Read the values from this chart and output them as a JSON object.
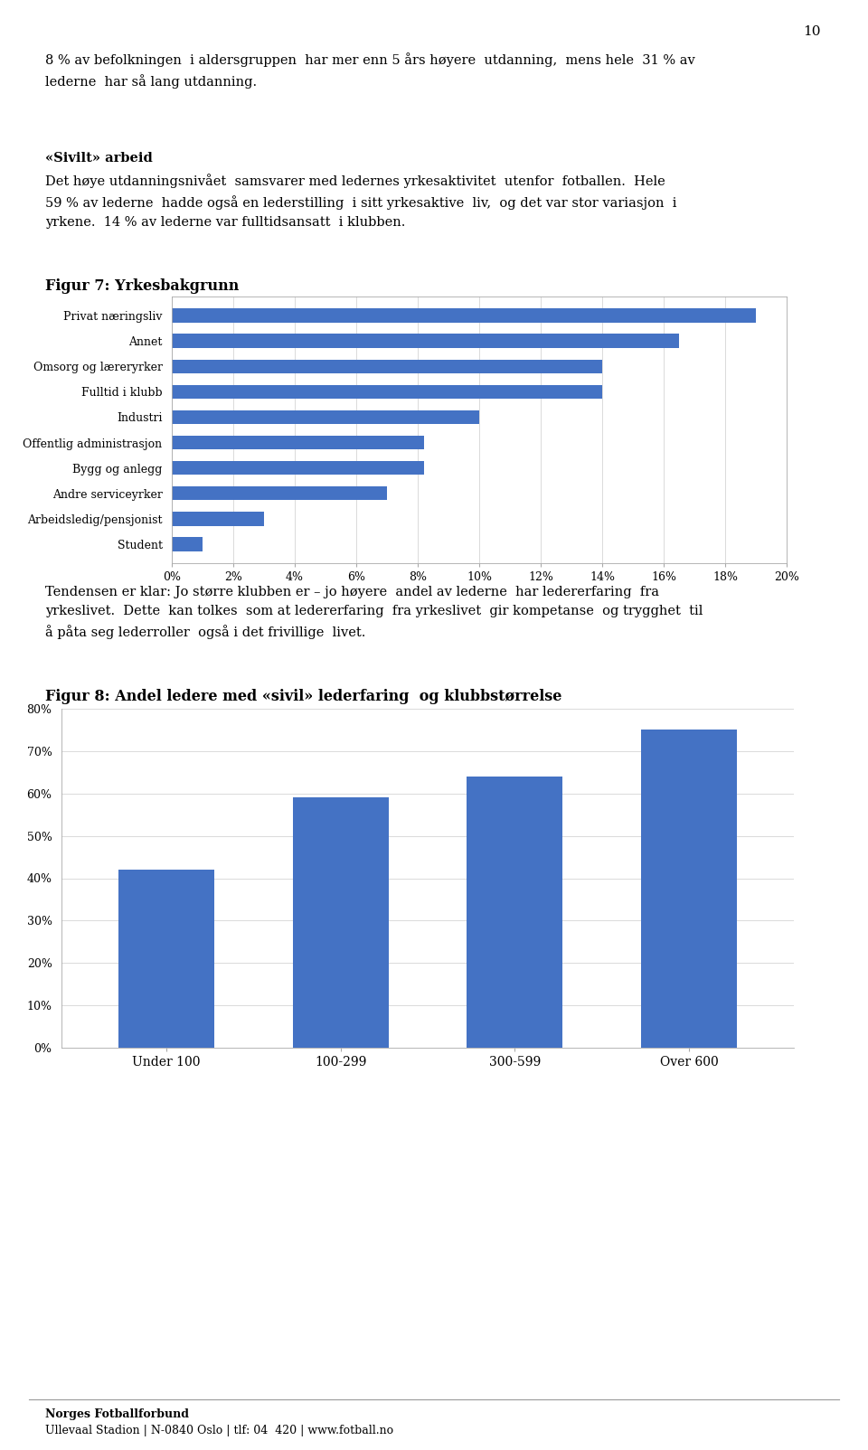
{
  "page_number": "10",
  "text_block1": "8 % av befolkningen  i aldersgruppen  har mer enn 5 års høyere  utdanning,  mens hele  31 % av\nlederne  har så lang utdanning.",
  "section_title": "«Sivilt» arbeid",
  "text_block2": "Det høye utdanningsnivået  samsvarer med ledernes yrkesaktivitet  utenfor  fotballen.  Hele\n59 % av lederne  hadde også en lederstilling  i sitt yrkesaktive  liv,  og det var stor variasjon  i\nyrkene.  14 % av lederne var fulltidsansatt  i klubben.",
  "fig7_title": "Figur 7: Yrkesbakgrunn",
  "fig7_categories": [
    "Privat næringsliv",
    "Annet",
    "Omsorg og læreryrker",
    "Fulltid i klubb",
    "Industri",
    "Offentlig administrasjon",
    "Bygg og anlegg",
    "Andre serviceyrker",
    "Arbeidsledig/pensjonist",
    "Student"
  ],
  "fig7_values": [
    0.19,
    0.165,
    0.14,
    0.14,
    0.1,
    0.082,
    0.082,
    0.07,
    0.03,
    0.01
  ],
  "fig7_bar_color": "#4472C4",
  "fig7_xlim": [
    0,
    0.2
  ],
  "fig7_xticks": [
    0,
    0.02,
    0.04,
    0.06,
    0.08,
    0.1,
    0.12,
    0.14,
    0.16,
    0.18,
    0.2
  ],
  "fig7_xtick_labels": [
    "0%",
    "2%",
    "4%",
    "6%",
    "8%",
    "10%",
    "12%",
    "14%",
    "16%",
    "18%",
    "20%"
  ],
  "text_block3": "Tendensen er klar: Jo større klubben er – jo høyere  andel av lederne  har ledererfaring  fra\nyrkeslivet.  Dette  kan tolkes  som at ledererfaring  fra yrkeslivet  gir kompetanse  og trygghet  til\nå påta seg lederroller  også i det frivillige  livet.",
  "fig8_title": "Figur 8: Andel ledere med «sivil» lederfaring  og klubbstørrelse",
  "fig8_categories": [
    "Under 100",
    "100-299",
    "300-599",
    "Over 600"
  ],
  "fig8_values": [
    0.42,
    0.59,
    0.64,
    0.75
  ],
  "fig8_bar_color": "#4472C4",
  "fig8_ylim": [
    0,
    0.8
  ],
  "fig8_yticks": [
    0,
    0.1,
    0.2,
    0.3,
    0.4,
    0.5,
    0.6,
    0.7,
    0.8
  ],
  "fig8_ytick_labels": [
    "0%",
    "10%",
    "20%",
    "30%",
    "40%",
    "50%",
    "60%",
    "70%",
    "80%"
  ],
  "footer_line1": "Norges Fotballforbund",
  "footer_line2": "Ullevaal Stadion | N-0840 Oslo | tlf: 04  420 | www.fotball.no",
  "bg_color": "#ffffff",
  "text_color": "#000000",
  "font_size_body": 10.5,
  "font_size_fig_title": 11.5
}
